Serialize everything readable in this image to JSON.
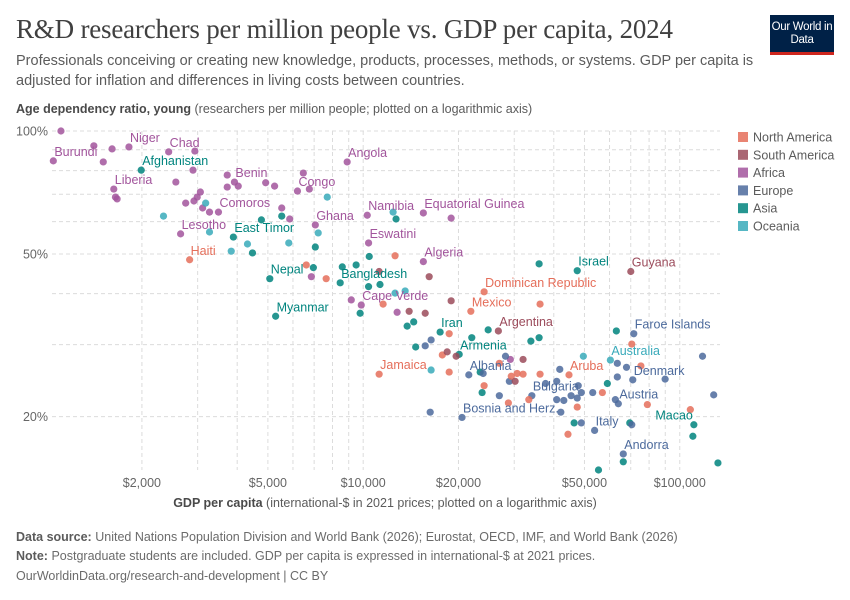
{
  "header": {
    "title": "R&D researchers per million people vs. GDP per capita, 2024",
    "subtitle": "Professionals conceiving or creating new knowledge, products, processes, methods, or systems. GDP per capita is adjusted for inflation and differences in living costs between countries.",
    "logo_text": "Our World in Data"
  },
  "footer": {
    "source_label": "Data source:",
    "source_text": "United Nations Population Division and World Bank (2026); Eurostat, OECD, IMF, and World Bank (2026)",
    "note_label": "Note:",
    "note_text": "Postgraduate students are included. GDP per capita is expressed in international-$ at 2021 prices.",
    "url": "OurWorldinData.org/research-and-development | CC BY"
  },
  "chart_data": {
    "type": "scatter",
    "title": "R&D researchers per million people vs. GDP per capita, 2024",
    "ylabel_bold": "Age dependency ratio, young",
    "ylabel_rest": " (researchers per million people; plotted on a logarithmic axis)",
    "xlabel_bold": "GDP per capita",
    "xlabel_rest": " (international-$ in 2021 prices; plotted on a logarithmic axis)",
    "x_scale": "log",
    "y_scale": "log",
    "xlim": [
      1040,
      134000
    ],
    "ylim": [
      14.8,
      100
    ],
    "x_ticks": [
      {
        "value": 2000,
        "label": "$2,000"
      },
      {
        "value": 5000,
        "label": "$5,000"
      },
      {
        "value": 10000,
        "label": "$10,000"
      },
      {
        "value": 20000,
        "label": "$20,000"
      },
      {
        "value": 50000,
        "label": "$50,000"
      },
      {
        "value": 100000,
        "label": "$100,000"
      }
    ],
    "y_ticks": [
      {
        "value": 100,
        "label": "100%"
      },
      {
        "value": 50,
        "label": "50%"
      },
      {
        "value": 20,
        "label": "20%"
      }
    ],
    "grid": true,
    "legend_position": "right",
    "regions": [
      {
        "name": "North America",
        "color": "#E56E5A"
      },
      {
        "name": "South America",
        "color": "#9B4B5B"
      },
      {
        "name": "Africa",
        "color": "#A2559C"
      },
      {
        "name": "Europe",
        "color": "#4C6A9C"
      },
      {
        "name": "Asia",
        "color": "#00847E"
      },
      {
        "name": "Oceania",
        "color": "#38AABA"
      }
    ],
    "points": [
      [
        1110,
        100,
        2
      ],
      [
        1050,
        84.5,
        2,
        "Burundi"
      ],
      [
        1410,
        92,
        2
      ],
      [
        1510,
        84,
        2
      ],
      [
        1610,
        90.4,
        2
      ],
      [
        1820,
        91.4,
        2,
        "Niger"
      ],
      [
        2430,
        88.9,
        2,
        "Chad"
      ],
      [
        2940,
        89.3,
        2
      ],
      [
        2900,
        80.2,
        2
      ],
      [
        1630,
        72.1,
        2,
        "Liberia"
      ],
      [
        1650,
        68.9,
        2
      ],
      [
        1670,
        68.2,
        2
      ],
      [
        2560,
        75,
        2
      ],
      [
        2750,
        66.6,
        2
      ],
      [
        2920,
        67.4,
        2
      ],
      [
        2990,
        68.9,
        2
      ],
      [
        3060,
        70.9,
        2
      ],
      [
        3110,
        64.8,
        2
      ],
      [
        3270,
        63.3,
        2
      ],
      [
        3490,
        63.3,
        2,
        "Comoros"
      ],
      [
        2650,
        56,
        2,
        "Lesotho"
      ],
      [
        3720,
        78,
        2
      ],
      [
        3920,
        75,
        2,
        "Benin"
      ],
      [
        4030,
        73.3,
        2
      ],
      [
        3720,
        72.9,
        2
      ],
      [
        4920,
        74.7,
        2
      ],
      [
        5250,
        73.3,
        2
      ],
      [
        6470,
        78.9,
        2
      ],
      [
        6200,
        71.3,
        2,
        "Congo"
      ],
      [
        6760,
        72.1,
        2
      ],
      [
        8900,
        84,
        2,
        "Angola"
      ],
      [
        5530,
        64.8,
        2
      ],
      [
        5860,
        60.9,
        2
      ],
      [
        7060,
        58.9,
        2,
        "Ghana"
      ],
      [
        6860,
        44,
        2
      ],
      [
        10300,
        62.2,
        2,
        "Namibia"
      ],
      [
        15490,
        63,
        2,
        "Equatorial Guinea"
      ],
      [
        18960,
        61.2,
        2
      ],
      [
        10400,
        53.2,
        2,
        "Eswatini"
      ],
      [
        15490,
        47.9,
        2,
        "Algeria"
      ],
      [
        9170,
        38.6,
        2
      ],
      [
        9860,
        37.5,
        2,
        "Cape Verde"
      ],
      [
        12800,
        36,
        2
      ],
      [
        29160,
        27.6,
        2
      ],
      [
        1990,
        80.2,
        4,
        "Afghanistan"
      ],
      [
        3890,
        55,
        4,
        "East Timor"
      ],
      [
        5530,
        61.9,
        4
      ],
      [
        4770,
        60.6,
        4
      ],
      [
        4470,
        50.3,
        4
      ],
      [
        7060,
        52,
        4
      ],
      [
        5070,
        43.5,
        4,
        "Nepal"
      ],
      [
        6960,
        46.3,
        4
      ],
      [
        8590,
        46.5,
        4
      ],
      [
        9500,
        47,
        4
      ],
      [
        8460,
        42.5,
        4,
        "Bangladesh"
      ],
      [
        10450,
        49.3,
        4
      ],
      [
        10400,
        41.6,
        4
      ],
      [
        11300,
        42.1,
        4
      ],
      [
        12700,
        60.9,
        4
      ],
      [
        9780,
        35.8,
        4
      ],
      [
        5290,
        35.2,
        4,
        "Myanmar"
      ],
      [
        14440,
        34.1,
        4
      ],
      [
        13770,
        33.3,
        4
      ],
      [
        17500,
        32.2,
        4,
        "Iran"
      ],
      [
        14650,
        29.6,
        4
      ],
      [
        22030,
        31.2,
        4
      ],
      [
        24820,
        32.6,
        4
      ],
      [
        33860,
        30.6,
        4
      ],
      [
        35950,
        31.2,
        4
      ],
      [
        35950,
        47.3,
        4
      ],
      [
        47440,
        45.5,
        4,
        "Israel"
      ],
      [
        63050,
        32.4,
        4
      ],
      [
        20100,
        28.4,
        4,
        "Armenia"
      ],
      [
        23420,
        25.7,
        4
      ],
      [
        23750,
        22.9,
        4
      ],
      [
        59060,
        24.1,
        4
      ],
      [
        46380,
        19.3,
        4
      ],
      [
        69520,
        19.3,
        4
      ],
      [
        110800,
        19.1,
        4,
        "Macao"
      ],
      [
        110000,
        17.9,
        4
      ],
      [
        66310,
        15.5,
        4
      ],
      [
        55370,
        14.8,
        4
      ],
      [
        132000,
        15.4,
        4
      ],
      [
        16390,
        30.8,
        3
      ],
      [
        15700,
        29.8,
        3
      ],
      [
        21560,
        25.3,
        3,
        "Albania"
      ],
      [
        23930,
        25.5,
        3
      ],
      [
        28150,
        28.1,
        3
      ],
      [
        28950,
        24.4,
        3
      ],
      [
        26920,
        22.5,
        3
      ],
      [
        34100,
        22.5,
        3,
        "Bulgaria"
      ],
      [
        41780,
        26.1,
        3
      ],
      [
        40860,
        24.4,
        3
      ],
      [
        37670,
        24.1,
        3
      ],
      [
        47780,
        23.8,
        3
      ],
      [
        63500,
        27,
        3
      ],
      [
        67880,
        26.4,
        3
      ],
      [
        63500,
        25,
        3
      ],
      [
        71050,
        24.6,
        3,
        "Denmark"
      ],
      [
        89900,
        24.7,
        3
      ],
      [
        53100,
        22.9,
        3
      ],
      [
        48870,
        22.9,
        3
      ],
      [
        45370,
        22.5,
        3
      ],
      [
        47440,
        22.2,
        3
      ],
      [
        43030,
        21.9,
        3
      ],
      [
        40860,
        22,
        3
      ],
      [
        42100,
        20.5,
        3
      ],
      [
        63960,
        21.5,
        3,
        "Austria"
      ],
      [
        62600,
        22,
        3
      ],
      [
        128000,
        22.6,
        3
      ],
      [
        118000,
        28.1,
        3
      ],
      [
        71560,
        31.9,
        3,
        "Faroe Islands"
      ],
      [
        16280,
        20.5,
        3
      ],
      [
        20520,
        19.9,
        3,
        "Bosnia and Herz."
      ],
      [
        48870,
        19.3,
        3
      ],
      [
        53830,
        18.5,
        3,
        "Italy"
      ],
      [
        70540,
        19.1,
        3
      ],
      [
        66310,
        16.2,
        3,
        "Andorra"
      ],
      [
        2830,
        48.4,
        0,
        "Haiti"
      ],
      [
        6610,
        47,
        0
      ],
      [
        7640,
        43.5,
        0
      ],
      [
        12610,
        49.5,
        0
      ],
      [
        11560,
        37.7,
        0
      ],
      [
        24100,
        40.4,
        0,
        "Dominican Republic"
      ],
      [
        36200,
        37.7,
        0
      ],
      [
        21880,
        36.2,
        0,
        "Mexico"
      ],
      [
        18690,
        31.9,
        0
      ],
      [
        17780,
        28.3,
        0
      ],
      [
        11230,
        25.4,
        0,
        "Jamaica"
      ],
      [
        18690,
        25.7,
        0
      ],
      [
        26920,
        27,
        0
      ],
      [
        29360,
        25.1,
        0
      ],
      [
        30640,
        25.5,
        0
      ],
      [
        31990,
        25.4,
        0
      ],
      [
        36200,
        25.4,
        0
      ],
      [
        24100,
        23.8,
        0
      ],
      [
        28750,
        21.6,
        0
      ],
      [
        33360,
        22,
        0
      ],
      [
        44680,
        25.3,
        0,
        "Aruba"
      ],
      [
        75380,
        26.6,
        0
      ],
      [
        70540,
        30.1,
        0
      ],
      [
        56960,
        22.9,
        0
      ],
      [
        47440,
        21.1,
        0
      ],
      [
        79000,
        21.4,
        0
      ],
      [
        108000,
        20.8,
        0
      ],
      [
        44350,
        18.1,
        0
      ],
      [
        11230,
        45.3,
        1
      ],
      [
        16160,
        44,
        1
      ],
      [
        18960,
        38.4,
        1
      ],
      [
        13970,
        36.2,
        1
      ],
      [
        15700,
        35.8,
        1
      ],
      [
        18420,
        28.8,
        1
      ],
      [
        19660,
        28.1,
        1
      ],
      [
        26730,
        32.4,
        1,
        "Argentina"
      ],
      [
        31990,
        27.6,
        1
      ],
      [
        30200,
        24.4,
        1
      ],
      [
        70030,
        45.3,
        1,
        "Guyana"
      ],
      [
        2340,
        61.9,
        5
      ],
      [
        3180,
        66.6,
        5
      ],
      [
        3270,
        56.6,
        5
      ],
      [
        4310,
        52.9,
        5
      ],
      [
        3830,
        50.8,
        5
      ],
      [
        5820,
        53.2,
        5
      ],
      [
        7210,
        56.3,
        5
      ],
      [
        7700,
        68.9,
        5
      ],
      [
        12430,
        63.3,
        5
      ],
      [
        12610,
        40.1,
        5
      ],
      [
        13570,
        40.6,
        5
      ],
      [
        16390,
        26,
        5
      ],
      [
        49600,
        28.1,
        5
      ],
      [
        60370,
        27.5,
        5,
        "Australia"
      ]
    ]
  }
}
